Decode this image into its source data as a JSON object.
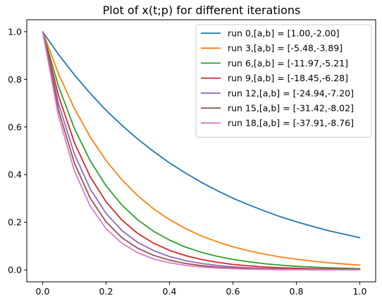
{
  "chart_data": {
    "type": "line",
    "title": "Plot of x(t;p) for different iterations",
    "xlabel": "",
    "ylabel": "",
    "xlim": [
      -0.05,
      1.05
    ],
    "ylim": [
      -0.05,
      1.05
    ],
    "grid": false,
    "legend_position": "top-right",
    "x_ticks": [
      {
        "value": 0.0,
        "label": "0.0"
      },
      {
        "value": 0.2,
        "label": "0.2"
      },
      {
        "value": 0.4,
        "label": "0.4"
      },
      {
        "value": 0.6,
        "label": "0.6"
      },
      {
        "value": 0.8,
        "label": "0.8"
      },
      {
        "value": 1.0,
        "label": "1.0"
      }
    ],
    "y_ticks": [
      {
        "value": 0.0,
        "label": "0.0"
      },
      {
        "value": 0.2,
        "label": "0.2"
      },
      {
        "value": 0.4,
        "label": "0.4"
      },
      {
        "value": 0.6,
        "label": "0.6"
      },
      {
        "value": 0.8,
        "label": "0.8"
      },
      {
        "value": 1.0,
        "label": "1.0"
      }
    ],
    "x": [
      0.0,
      0.05,
      0.1,
      0.15,
      0.2,
      0.25,
      0.3,
      0.35,
      0.4,
      0.45,
      0.5,
      0.55,
      0.6,
      0.65,
      0.7,
      0.75,
      0.8,
      0.85,
      0.9,
      0.95,
      1.0
    ],
    "series": [
      {
        "name": "run 0,[a,b] = [1.00,-2.00]",
        "color": "#1f77b4",
        "values": [
          1.0,
          0.905,
          0.819,
          0.741,
          0.67,
          0.607,
          0.549,
          0.497,
          0.449,
          0.407,
          0.368,
          0.333,
          0.301,
          0.273,
          0.247,
          0.223,
          0.202,
          0.183,
          0.165,
          0.15,
          0.135
        ]
      },
      {
        "name": "run 3,[a,b] = [-5.48,-3.89]",
        "color": "#ff7f0e",
        "values": [
          1.0,
          0.823,
          0.678,
          0.558,
          0.459,
          0.378,
          0.311,
          0.256,
          0.211,
          0.174,
          0.143,
          0.118,
          0.097,
          0.08,
          0.066,
          0.054,
          0.045,
          0.037,
          0.03,
          0.025,
          0.02
        ]
      },
      {
        "name": "run 6,[a,b] = [-11.97,-5.21]",
        "color": "#2ca02c",
        "values": [
          1.0,
          0.771,
          0.594,
          0.458,
          0.353,
          0.272,
          0.21,
          0.162,
          0.125,
          0.096,
          0.074,
          0.057,
          0.044,
          0.034,
          0.026,
          0.02,
          0.015,
          0.012,
          0.009,
          0.007,
          0.005
        ]
      },
      {
        "name": "run 9,[a,b] = [-18.45,-6.28]",
        "color": "#d62728",
        "values": [
          1.0,
          0.731,
          0.535,
          0.391,
          0.286,
          0.209,
          0.153,
          0.112,
          0.082,
          0.06,
          0.044,
          0.032,
          0.023,
          0.017,
          0.012,
          0.009,
          0.007,
          0.005,
          0.004,
          0.003,
          0.002
        ]
      },
      {
        "name": "run 12,[a,b] = [-24.94,-7.20]",
        "color": "#9467bd",
        "values": [
          1.0,
          0.698,
          0.487,
          0.34,
          0.237,
          0.165,
          0.115,
          0.081,
          0.056,
          0.039,
          0.027,
          0.019,
          0.013,
          0.009,
          0.006,
          0.004,
          0.003,
          0.002,
          0.002,
          0.001,
          0.001
        ]
      },
      {
        "name": "run 15,[a,b] = [-31.42,-8.02]",
        "color": "#8c564b",
        "values": [
          1.0,
          0.67,
          0.449,
          0.301,
          0.202,
          0.135,
          0.091,
          0.061,
          0.041,
          0.027,
          0.018,
          0.012,
          0.008,
          0.005,
          0.004,
          0.002,
          0.002,
          0.001,
          0.001,
          0.0005,
          0.0003
        ]
      },
      {
        "name": "run 18,[a,b] = [-37.91,-8.76]",
        "color": "#e377c2",
        "values": [
          1.0,
          0.645,
          0.416,
          0.268,
          0.173,
          0.112,
          0.072,
          0.046,
          0.03,
          0.019,
          0.012,
          0.008,
          0.005,
          0.003,
          0.002,
          0.001,
          0.001,
          0.0006,
          0.0004,
          0.0002,
          0.0002
        ]
      }
    ]
  }
}
